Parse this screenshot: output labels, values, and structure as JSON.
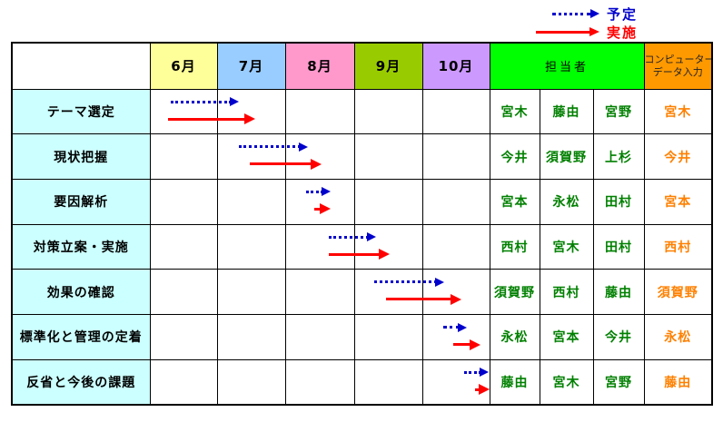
{
  "legend": {
    "planned": {
      "label": "予定",
      "color": "#0000CC",
      "line_style": "dotted"
    },
    "actual": {
      "label": "実施",
      "color": "#FF0000",
      "line_style": "solid"
    }
  },
  "header": {
    "months": [
      {
        "label": "6月",
        "bg": "#FFFF99"
      },
      {
        "label": "7月",
        "bg": "#99CCFF"
      },
      {
        "label": "8月",
        "bg": "#FF99CC"
      },
      {
        "label": "9月",
        "bg": "#99CC00"
      },
      {
        "label": "10月",
        "bg": "#CC99FF"
      }
    ],
    "tantousha": {
      "label": "担当者",
      "bg": "#00FF00"
    },
    "data_entry": {
      "line1": "コンピューター",
      "line2": "データ入力",
      "bg": "#FF9900"
    }
  },
  "styles": {
    "task_label_bg": "#CCFFFF",
    "assignee_text_color": "#008000",
    "data_entry_text_color": "#FF8000",
    "planned_arrow_color": "#0000CC",
    "actual_arrow_color": "#FF0000",
    "grid_color": "#000000"
  },
  "chart_data": {
    "type": "table",
    "subtype": "gantt-schedule",
    "title": "",
    "x_axis": {
      "tick_labels": [
        "6月",
        "7月",
        "8月",
        "9月",
        "10月"
      ],
      "range_months": [
        6,
        11
      ],
      "grid": true
    },
    "legend": [
      {
        "label": "予定",
        "style": "dotted",
        "color": "#0000CC"
      },
      {
        "label": "実施",
        "style": "solid",
        "color": "#FF0000"
      }
    ],
    "legend_position": "top-right",
    "rows": [
      {
        "task": "テーマ選定",
        "planned_months": [
          6.32,
          7.33
        ],
        "actual_months": [
          6.28,
          7.57
        ],
        "tantousha": [
          "宮木",
          "藤由",
          "宮野"
        ],
        "data_entry": "宮木"
      },
      {
        "task": "現状把握",
        "planned_months": [
          7.32,
          8.34
        ],
        "actual_months": [
          7.48,
          8.54
        ],
        "tantousha": [
          "今井",
          "須賀野",
          "上杉"
        ],
        "data_entry": "今井"
      },
      {
        "task": "要因解析",
        "planned_months": [
          8.31,
          8.67
        ],
        "actual_months": [
          8.43,
          8.67
        ],
        "tantousha": [
          "宮本",
          "永松",
          "田村"
        ],
        "data_entry": "宮本"
      },
      {
        "task": "対策立案・実施",
        "planned_months": [
          8.65,
          9.34
        ],
        "actual_months": [
          8.65,
          9.54
        ],
        "tantousha": [
          "西村",
          "宮木",
          "田村"
        ],
        "data_entry": "西村"
      },
      {
        "task": "効果の確認",
        "planned_months": [
          9.32,
          10.34
        ],
        "actual_months": [
          9.49,
          10.6
        ],
        "tantousha": [
          "須賀野",
          "西村",
          "藤由"
        ],
        "data_entry": "須賀野"
      },
      {
        "task": "標準化と管理の定着",
        "planned_months": [
          10.33,
          10.68
        ],
        "actual_months": [
          10.48,
          10.88
        ],
        "tantousha": [
          "永松",
          "宮本",
          "今井"
        ],
        "data_entry": "永松"
      },
      {
        "task": "反省と今後の課題",
        "planned_months": [
          10.64,
          11.0
        ],
        "actual_months": [
          10.8,
          11.02
        ],
        "tantousha": [
          "藤由",
          "宮木",
          "宮野"
        ],
        "data_entry": "藤由"
      }
    ]
  }
}
